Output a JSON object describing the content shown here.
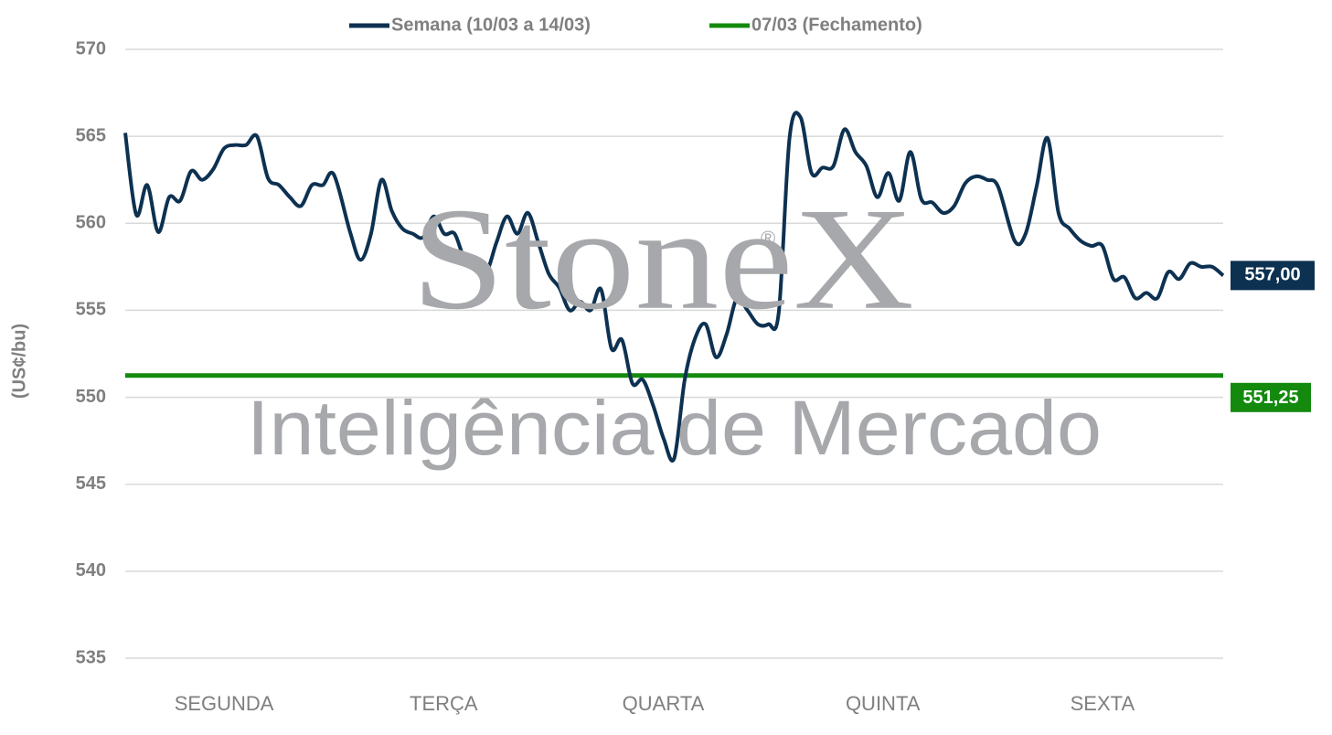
{
  "chart_data": {
    "type": "line",
    "y_label": "(US¢/bu)",
    "watermark": {
      "brand": "StoneX",
      "mark": "®",
      "tagline": "Inteligência de Mercado"
    },
    "categories": [
      "SEGUNDA",
      "TERÇA",
      "QUARTA",
      "QUINTA",
      "SEXTA"
    ],
    "series": [
      {
        "name": "Semana (10/03 a 14/03)",
        "color": "#0d3151",
        "end_label": "557,00",
        "values": [
          [
            565.2,
            560.5,
            562.2,
            559.5,
            561.5,
            561.3,
            563,
            562.5,
            563.1,
            564.3,
            564.5,
            564.5,
            565,
            562.6,
            562.2,
            561.5,
            561,
            562.2,
            562.2,
            562.8
          ],
          [
            559.5,
            557.9,
            559.4,
            562.5,
            560.7,
            559.7,
            559.4,
            559.2,
            560.4,
            559.4,
            559.4,
            557.9,
            558,
            557.2,
            558.9,
            560.4,
            559.4,
            560.6,
            558.9,
            557.1,
            556.3
          ],
          [
            555,
            555.5,
            555,
            556.2,
            552.8,
            553.3,
            550.8,
            551,
            549.5,
            547.6,
            546.5,
            551,
            553.4,
            554.2,
            552.3,
            553.6,
            555.7,
            555,
            554.2,
            554.2,
            554.9
          ],
          [
            564.9,
            566.1,
            562.9,
            563.2,
            563.3,
            565.4,
            564.1,
            563.3,
            561.5,
            562.9,
            561.3,
            564.1,
            561.4,
            561.2,
            560.6,
            561,
            562.3,
            562.7,
            562.5,
            562.1
          ],
          [
            559,
            559.4,
            562.1,
            564.9,
            560.6,
            559.7,
            559,
            558.7,
            558.7,
            556.8,
            556.9,
            555.7,
            556,
            555.7,
            557.2,
            556.8,
            557.7,
            557.5,
            557.5,
            557
          ]
        ]
      }
    ],
    "reference_line": {
      "name": "07/03 (Fechamento)",
      "color": "#138a0e",
      "value": 551.25,
      "value_label": "551,25"
    },
    "ylim": [
      535,
      570
    ],
    "yticks": [
      535,
      540,
      545,
      550,
      555,
      560,
      565,
      570
    ],
    "grid": true
  }
}
